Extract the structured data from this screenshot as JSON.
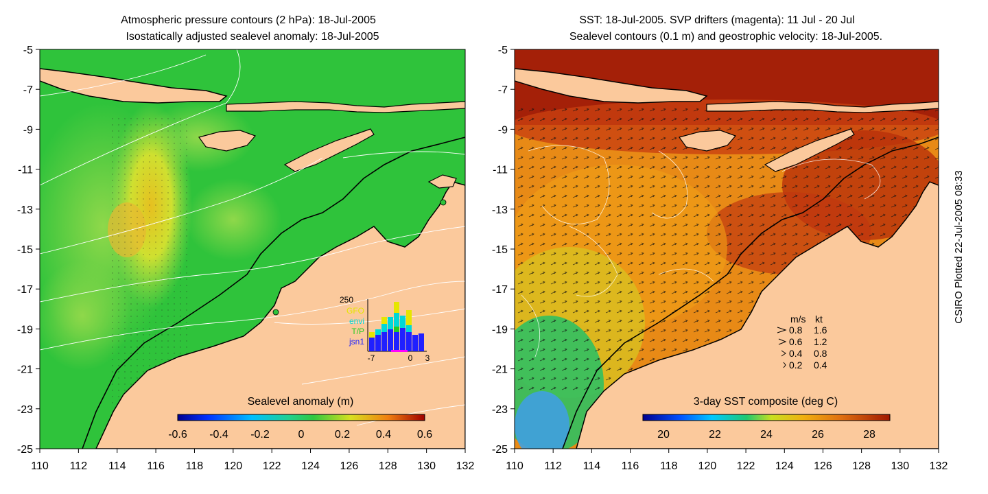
{
  "left_panel": {
    "title_line1": "Atmospheric pressure contours (2 hPa): 18-Jul-2005",
    "title_line2": "Isostatically adjusted sealevel anomaly: 18-Jul-2005",
    "colorbar_label": "Sealevel anomaly (m)",
    "colorbar_ticks": [
      "-0.6",
      "-0.4",
      "-0.2",
      "0",
      "0.2",
      "0.4",
      "0.6"
    ],
    "inset": {
      "ymax_label": "250",
      "legend": [
        {
          "name": "GFO",
          "color": "#e6e600"
        },
        {
          "name": "envi",
          "color": "#00d8d8"
        },
        {
          "name": "T/P",
          "color": "#22cc22"
        },
        {
          "name": "jsn1",
          "color": "#2020ff"
        }
      ],
      "x_ticks": [
        "-7",
        "0",
        "3"
      ]
    }
  },
  "right_panel": {
    "title_line1": "SST: 18-Jul-2005. SVP drifters (magenta): 11 Jul - 20 Jul",
    "title_line2": "Sealevel contours (0.1 m) and geostrophic velocity: 18-Jul-2005.",
    "colorbar_label": "3-day SST composite (deg C)",
    "colorbar_ticks": [
      "20",
      "22",
      "24",
      "26",
      "28"
    ],
    "velocity_legend": {
      "header_ms": "m/s",
      "header_kt": "kt",
      "rows": [
        {
          "ms": "0.8",
          "kt": "1.6"
        },
        {
          "ms": "0.6",
          "kt": "1.2"
        },
        {
          "ms": "0.4",
          "kt": "0.8"
        },
        {
          "ms": "0.2",
          "kt": "0.4"
        }
      ]
    }
  },
  "axes": {
    "lat_ticks": [
      "-5",
      "-7",
      "-9",
      "-11",
      "-13",
      "-15",
      "-17",
      "-19",
      "-21",
      "-23",
      "-25"
    ],
    "lon_ticks": [
      "110",
      "112",
      "114",
      "116",
      "118",
      "120",
      "122",
      "124",
      "126",
      "128",
      "130",
      "132"
    ]
  },
  "credit": "CSIRO Plotted 22-Jul-2005 08:33",
  "colors": {
    "land": "#fbc99c",
    "sla_green": "#2fc33b",
    "sla_light": "#8fd84a",
    "sla_yellow": "#d4e62c",
    "sst_dark": "#a42008",
    "sst_orange": "#e07a12",
    "sst_amber": "#f0a018"
  }
}
